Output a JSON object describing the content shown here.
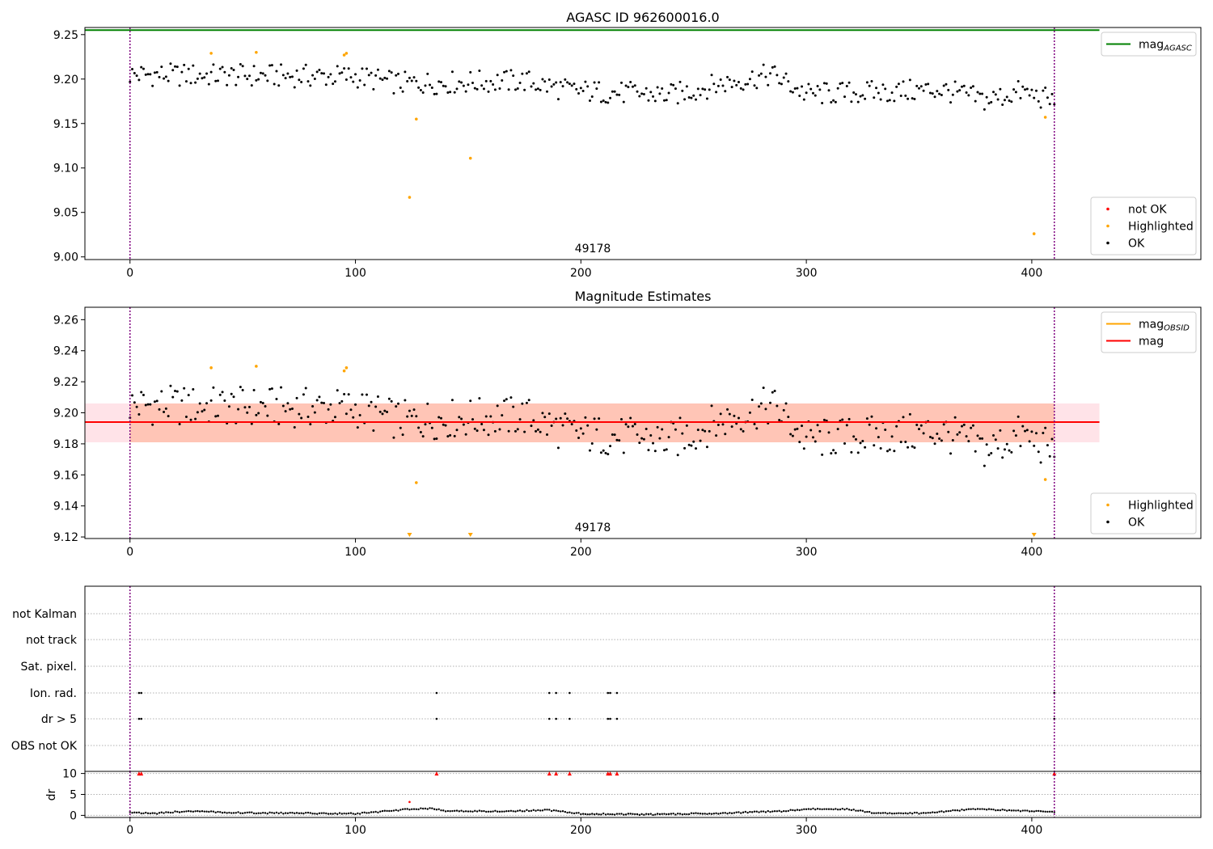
{
  "chart_data": [
    {
      "type": "scatter",
      "title": "AGASC ID 962600016.0",
      "xlim": [
        -20,
        475
      ],
      "ylim": [
        8.997,
        9.258
      ],
      "xticks": [
        0,
        100,
        200,
        300,
        400
      ],
      "yticks": [
        9.0,
        9.05,
        9.1,
        9.15,
        9.2,
        9.25
      ],
      "ytick_labels": [
        "9.00",
        "9.05",
        "9.10",
        "9.15",
        "9.20",
        "9.25"
      ],
      "annotation": {
        "text": "49178",
        "x": 205
      },
      "obs_boundaries": [
        0,
        410
      ],
      "hlines": [
        {
          "name": "mag",
          "sub": "AGASC",
          "value": 9.255,
          "color": "#008000",
          "x_end": 430
        }
      ],
      "legends": [
        {
          "position": "top-right",
          "entries": [
            {
              "label": "mag",
              "sub": "AGASC",
              "kind": "line",
              "color": "#008000"
            }
          ]
        },
        {
          "position": "lower-right",
          "entries": [
            {
              "label": "not OK",
              "kind": "dot",
              "color": "#ff0000"
            },
            {
              "label": "Highlighted",
              "kind": "dot",
              "color": "#ffa500"
            },
            {
              "label": "OK",
              "kind": "dot",
              "color": "#000000"
            }
          ]
        }
      ],
      "highlighted_points": [
        [
          36,
          9.229
        ],
        [
          56,
          9.23
        ],
        [
          95,
          9.227
        ],
        [
          96,
          9.229
        ],
        [
          124,
          9.067
        ],
        [
          127,
          9.155
        ],
        [
          151,
          9.111
        ],
        [
          401,
          9.026
        ],
        [
          406,
          9.157
        ]
      ],
      "series": [
        {
          "name": "OK",
          "color": "#000000",
          "trend": [
            [
              0,
              9.205
            ],
            [
              100,
              9.203
            ],
            [
              120,
              9.195
            ],
            [
              175,
              9.198
            ],
            [
              195,
              9.187
            ],
            [
              240,
              9.182
            ],
            [
              265,
              9.196
            ],
            [
              285,
              9.205
            ],
            [
              300,
              9.183
            ],
            [
              340,
              9.186
            ],
            [
              360,
              9.188
            ],
            [
              380,
              9.176
            ],
            [
              395,
              9.186
            ],
            [
              410,
              9.175
            ]
          ],
          "amplitude": 0.013,
          "n_points": 410,
          "x_range": [
            0,
            410
          ]
        }
      ]
    },
    {
      "type": "scatter",
      "title": "Magnitude Estimates",
      "xlim": [
        -20,
        475
      ],
      "ylim": [
        9.119,
        9.268
      ],
      "xticks": [
        0,
        100,
        200,
        300,
        400
      ],
      "yticks": [
        9.12,
        9.14,
        9.16,
        9.18,
        9.2,
        9.22,
        9.24,
        9.26
      ],
      "ytick_labels": [
        "9.12",
        "9.14",
        "9.16",
        "9.18",
        "9.20",
        "9.22",
        "9.24",
        "9.26"
      ],
      "annotation": {
        "text": "49178",
        "x": 205
      },
      "obs_boundaries": [
        0,
        410
      ],
      "bands": [
        {
          "y0": 9.181,
          "y1": 9.206,
          "x0": -20,
          "x1": 430,
          "color": "#ffc0cb"
        },
        {
          "y0": 9.181,
          "y1": 9.206,
          "x0": 0,
          "x1": 410,
          "color": "#ffa07a"
        }
      ],
      "hlines": [
        {
          "name": "mag",
          "value": 9.194,
          "color": "#ff0000",
          "x_end": 430
        }
      ],
      "legends": [
        {
          "position": "top-right",
          "entries": [
            {
              "label": "mag",
              "sub": "OBSID",
              "kind": "line",
              "color": "#ffa500"
            },
            {
              "label": "mag",
              "kind": "line",
              "color": "#ff0000"
            }
          ]
        },
        {
          "position": "lower-right",
          "entries": [
            {
              "label": "Highlighted",
              "kind": "dot",
              "color": "#ffa500"
            },
            {
              "label": "OK",
              "kind": "dot",
              "color": "#000000"
            }
          ]
        }
      ],
      "highlighted_points": [
        [
          36,
          9.229
        ],
        [
          56,
          9.23
        ],
        [
          95,
          9.227
        ],
        [
          96,
          9.229
        ],
        [
          127,
          9.155
        ],
        [
          406,
          9.157
        ]
      ],
      "offscale_markers": [
        124,
        151,
        401
      ],
      "series": [
        {
          "name": "OK",
          "color": "#000000",
          "trend": [
            [
              0,
              9.205
            ],
            [
              100,
              9.203
            ],
            [
              120,
              9.195
            ],
            [
              175,
              9.198
            ],
            [
              195,
              9.187
            ],
            [
              240,
              9.182
            ],
            [
              265,
              9.196
            ],
            [
              285,
              9.205
            ],
            [
              300,
              9.183
            ],
            [
              340,
              9.186
            ],
            [
              360,
              9.188
            ],
            [
              380,
              9.176
            ],
            [
              395,
              9.186
            ],
            [
              410,
              9.175
            ]
          ],
          "amplitude": 0.013,
          "n_points": 410,
          "x_range": [
            0,
            410
          ]
        }
      ]
    },
    {
      "type": "scatter",
      "xlim": [
        -20,
        475
      ],
      "flag_rows": [
        "not Kalman",
        "not track",
        "Sat. pixel.",
        "Ion. rad.",
        "dr > 5",
        "OBS not OK"
      ],
      "flags": {
        "Ion. rad.": [
          4,
          5,
          136,
          186,
          189,
          195,
          212,
          213,
          216,
          410
        ],
        "dr > 5": [
          4,
          5,
          136,
          186,
          189,
          195,
          212,
          213,
          216,
          410
        ]
      },
      "obs_boundaries": [
        0,
        410
      ]
    },
    {
      "type": "scatter",
      "ylabel": "dr",
      "xlim": [
        -20,
        475
      ],
      "ylim": [
        -0.5,
        10.5
      ],
      "xticks": [
        0,
        100,
        200,
        300,
        400
      ],
      "yticks": [
        0,
        5,
        10
      ],
      "ytick_labels": [
        "0",
        "5",
        "10"
      ],
      "obs_boundaries": [
        0,
        410
      ],
      "clipped_at_10": [
        4,
        5,
        136,
        186,
        189,
        195,
        212,
        213,
        216,
        410
      ],
      "red_points": [
        [
          124,
          3.2
        ]
      ],
      "series": [
        {
          "name": "dr",
          "color": "#000000",
          "trend": [
            [
              0,
              0.8
            ],
            [
              10,
              0.4
            ],
            [
              25,
              1.0
            ],
            [
              50,
              0.6
            ],
            [
              80,
              0.5
            ],
            [
              100,
              0.4
            ],
            [
              110,
              0.8
            ],
            [
              124,
              1.5
            ],
            [
              135,
              1.6
            ],
            [
              140,
              1.0
            ],
            [
              170,
              1.0
            ],
            [
              185,
              1.3
            ],
            [
              200,
              0.4
            ],
            [
              230,
              0.2
            ],
            [
              260,
              0.5
            ],
            [
              290,
              1.0
            ],
            [
              300,
              1.5
            ],
            [
              318,
              1.5
            ],
            [
              330,
              0.6
            ],
            [
              350,
              0.5
            ],
            [
              375,
              1.5
            ],
            [
              395,
              1.1
            ],
            [
              410,
              0.8
            ]
          ],
          "n_points": 410,
          "x_range": [
            0,
            410
          ]
        }
      ]
    }
  ]
}
